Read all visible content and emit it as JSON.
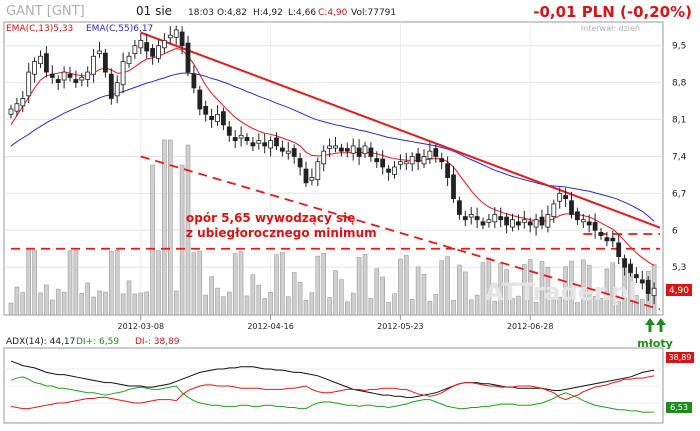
{
  "header": {
    "ticker": "GANT [GNT]",
    "date": "01 sie",
    "time": "18:03",
    "open": "O:4,82",
    "high": "H:4,92",
    "low": "L:4,66",
    "close": "C:4,90",
    "volume": "Vol:77791",
    "change": "-0,01 PLN (-0,20%)",
    "interval": "Interwał: dzień"
  },
  "legend": {
    "ema_short": "EMA(C,13)5,33",
    "ema_long": "EMA(C,55)6,17"
  },
  "annotations": {
    "resistance_line1": "opór 5,65 wywodzący się",
    "resistance_line2": "z ubiegłorocznego minimum",
    "hammers": "młoty",
    "watermark": "ATTrader.pl"
  },
  "price_tag": "4,90",
  "adx_tags": {
    "top": "38,89",
    "bottom": "6,53"
  },
  "adx_legend": {
    "adx": "ADX(14): 44,17",
    "di_plus": "DI+: 6,59",
    "di_minus": "DI-: 38,89"
  },
  "colors": {
    "ema_short": "#e8191a",
    "ema_long": "#2a2ad6",
    "trend": "#e8191a",
    "adx": "#111111",
    "di_plus": "#22a022",
    "di_minus": "#e8191a",
    "volume": "#cfcfcf",
    "arrow": "#1e8c1e"
  },
  "chart_data": [
    {
      "type": "candlestick",
      "title": "GANT [GNT]",
      "x_ticks": [
        "2012-03-08",
        "2012-04-16",
        "2012-05-23",
        "2012-06-28"
      ],
      "y_ticks": [
        "9,5",
        "8,8",
        "8,1",
        "7,4",
        "6,7",
        "6",
        "5,3"
      ],
      "ylim": [
        4.45,
        9.95
      ],
      "close": [
        8.3,
        8.4,
        8.5,
        9.0,
        9.2,
        9.3,
        9.0,
        8.9,
        8.8,
        9.0,
        8.9,
        8.8,
        8.9,
        9.0,
        9.3,
        9.4,
        9.0,
        8.5,
        8.8,
        9.2,
        9.3,
        9.5,
        9.6,
        9.4,
        9.3,
        9.5,
        9.6,
        9.7,
        9.8,
        9.5,
        9.0,
        8.7,
        8.3,
        8.2,
        8.1,
        8.2,
        8.0,
        7.8,
        7.7,
        7.8,
        7.7,
        7.6,
        7.7,
        7.6,
        7.7,
        7.6,
        7.5,
        7.5,
        7.4,
        7.2,
        6.9,
        7.0,
        7.3,
        7.5,
        7.6,
        7.6,
        7.5,
        7.5,
        7.6,
        7.4,
        7.6,
        7.4,
        7.3,
        7.2,
        7.1,
        7.2,
        7.3,
        7.3,
        7.4,
        7.3,
        7.4,
        7.5,
        7.4,
        7.3,
        7.0,
        6.6,
        6.3,
        6.2,
        6.3,
        6.2,
        6.1,
        6.2,
        6.3,
        6.2,
        6.1,
        6.2,
        6.1,
        6.2,
        6.1,
        6.2,
        6.1,
        6.3,
        6.5,
        6.7,
        6.6,
        6.3,
        6.2,
        6.2,
        6.1,
        6.0,
        5.9,
        5.8,
        5.8,
        5.5,
        5.3,
        5.2,
        5.1,
        5.0,
        4.8,
        4.9
      ],
      "series": [
        {
          "name": "EMA(C,13)",
          "last": 5.33,
          "values": [
            8.0,
            8.18,
            8.35,
            8.52,
            8.7,
            8.85,
            8.93,
            8.96,
            8.98,
            9.0,
            8.98,
            8.95,
            8.93,
            8.93,
            8.98,
            9.05,
            9.08,
            9.04,
            8.98,
            8.98,
            9.03,
            9.1,
            9.18,
            9.25,
            9.27,
            9.3,
            9.35,
            9.4,
            9.45,
            9.42,
            9.3,
            9.15,
            8.95,
            8.75,
            8.6,
            8.48,
            8.36,
            8.25,
            8.14,
            8.06,
            7.99,
            7.93,
            7.88,
            7.84,
            7.82,
            7.79,
            7.75,
            7.71,
            7.67,
            7.6,
            7.48,
            7.42,
            7.41,
            7.42,
            7.44,
            7.46,
            7.47,
            7.47,
            7.48,
            7.47,
            7.48,
            7.47,
            7.45,
            7.42,
            7.38,
            7.36,
            7.34,
            7.33,
            7.32,
            7.32,
            7.33,
            7.35,
            7.36,
            7.35,
            7.3,
            7.2,
            7.05,
            6.9,
            6.75,
            6.62,
            6.52,
            6.44,
            6.39,
            6.35,
            6.31,
            6.28,
            6.25,
            6.23,
            6.2,
            6.18,
            6.17,
            6.18,
            6.22,
            6.28,
            6.31,
            6.31,
            6.3,
            6.28,
            6.25,
            6.2,
            6.14,
            6.08,
            6.02,
            5.92,
            5.8,
            5.68,
            5.57,
            5.48,
            5.4,
            5.33
          ]
        },
        {
          "name": "EMA(C,55)",
          "last": 6.17,
          "values": [
            7.6,
            7.68,
            7.75,
            7.82,
            7.9,
            7.97,
            8.04,
            8.1,
            8.16,
            8.22,
            8.27,
            8.32,
            8.37,
            8.41,
            8.46,
            8.51,
            8.55,
            8.57,
            8.6,
            8.63,
            8.67,
            8.71,
            8.75,
            8.79,
            8.82,
            8.86,
            8.89,
            8.93,
            8.96,
            8.98,
            8.98,
            8.97,
            8.95,
            8.92,
            8.88,
            8.85,
            8.81,
            8.77,
            8.72,
            8.68,
            8.63,
            8.59,
            8.54,
            8.5,
            8.46,
            8.41,
            8.37,
            8.33,
            8.28,
            8.23,
            8.18,
            8.13,
            8.09,
            8.06,
            8.03,
            8.0,
            7.98,
            7.95,
            7.93,
            7.9,
            7.88,
            7.85,
            7.82,
            7.79,
            7.76,
            7.74,
            7.72,
            7.7,
            7.68,
            7.66,
            7.64,
            7.62,
            7.6,
            7.57,
            7.54,
            7.5,
            7.45,
            7.39,
            7.34,
            7.29,
            7.24,
            7.19,
            7.14,
            7.1,
            7.06,
            7.02,
            6.99,
            6.96,
            6.93,
            6.9,
            6.87,
            6.85,
            6.84,
            6.83,
            6.82,
            6.8,
            6.78,
            6.76,
            6.74,
            6.71,
            6.68,
            6.65,
            6.62,
            6.58,
            6.53,
            6.48,
            6.42,
            6.36,
            6.27,
            6.17
          ]
        }
      ],
      "trendlines": [
        {
          "style": "solid",
          "from": [
            22,
            9.75
          ],
          "to": [
            110,
            6.05
          ]
        },
        {
          "style": "dashed",
          "from": [
            22,
            7.4
          ],
          "to": [
            110,
            4.5
          ]
        },
        {
          "style": "dashed",
          "from": [
            0,
            5.65
          ],
          "to": [
            110,
            5.65
          ]
        },
        {
          "style": "dashed",
          "from": [
            97,
            5.93
          ],
          "to": [
            110,
            5.93
          ]
        }
      ]
    },
    {
      "type": "line",
      "title": "ADX(14)",
      "series": [
        {
          "name": "ADX(14)",
          "last": 44.17,
          "values": [
            52,
            50,
            48,
            47,
            46,
            44,
            42,
            41,
            40,
            40,
            39,
            38,
            37,
            36,
            35,
            34,
            33,
            33,
            32,
            31,
            30,
            30,
            30,
            29,
            29,
            30,
            31,
            32,
            34,
            36,
            38,
            40,
            42,
            43,
            44,
            45,
            45,
            46,
            46,
            47,
            47,
            47,
            46,
            45,
            45,
            44,
            44,
            43,
            42,
            42,
            41,
            40,
            39,
            37,
            35,
            33,
            31,
            29,
            27,
            26,
            25,
            24,
            23,
            22,
            22,
            21,
            21,
            20,
            20,
            21,
            22,
            23,
            24,
            26,
            28,
            30,
            32,
            33,
            33,
            33,
            32,
            32,
            31,
            30,
            29,
            29,
            28,
            28,
            28,
            28,
            28,
            27,
            26,
            26,
            27,
            28,
            29,
            30,
            31,
            32,
            33,
            34,
            35,
            36,
            37,
            38,
            40,
            42,
            43,
            44
          ]
        },
        {
          "name": "DI+",
          "last": 6.59,
          "values": [
            35,
            37,
            38,
            36,
            33,
            32,
            30,
            30,
            28,
            28,
            27,
            26,
            25,
            24,
            24,
            23,
            22,
            23,
            24,
            25,
            27,
            28,
            29,
            28,
            27,
            27,
            28,
            29,
            30,
            24,
            20,
            17,
            15,
            14,
            13,
            13,
            12,
            12,
            12,
            13,
            13,
            12,
            12,
            13,
            13,
            12,
            12,
            11,
            11,
            10,
            10,
            13,
            15,
            16,
            16,
            15,
            14,
            13,
            13,
            12,
            13,
            13,
            12,
            12,
            11,
            12,
            13,
            14,
            16,
            17,
            18,
            18,
            16,
            14,
            12,
            11,
            10,
            10,
            11,
            11,
            12,
            12,
            13,
            14,
            14,
            14,
            13,
            13,
            13,
            14,
            15,
            17,
            19,
            22,
            24,
            22,
            20,
            17,
            15,
            13,
            12,
            11,
            10,
            9,
            9,
            8,
            8,
            7,
            7,
            7
          ]
        },
        {
          "name": "DI-",
          "last": 38.89,
          "values": [
            12,
            11,
            10,
            10,
            11,
            12,
            13,
            14,
            15,
            15,
            16,
            17,
            18,
            19,
            19,
            20,
            20,
            19,
            18,
            17,
            16,
            15,
            15,
            16,
            17,
            18,
            18,
            18,
            17,
            22,
            26,
            28,
            30,
            31,
            31,
            30,
            30,
            30,
            29,
            28,
            28,
            28,
            28,
            27,
            27,
            27,
            27,
            28,
            28,
            29,
            30,
            27,
            25,
            24,
            24,
            25,
            26,
            27,
            27,
            27,
            26,
            27,
            27,
            28,
            28,
            28,
            27,
            27,
            25,
            23,
            22,
            21,
            22,
            24,
            27,
            30,
            32,
            33,
            33,
            32,
            31,
            30,
            30,
            29,
            29,
            29,
            30,
            30,
            30,
            29,
            28,
            26,
            24,
            20,
            18,
            20,
            22,
            25,
            27,
            29,
            30,
            31,
            33,
            34,
            36,
            36,
            37,
            37,
            38,
            38.89
          ]
        }
      ]
    }
  ]
}
